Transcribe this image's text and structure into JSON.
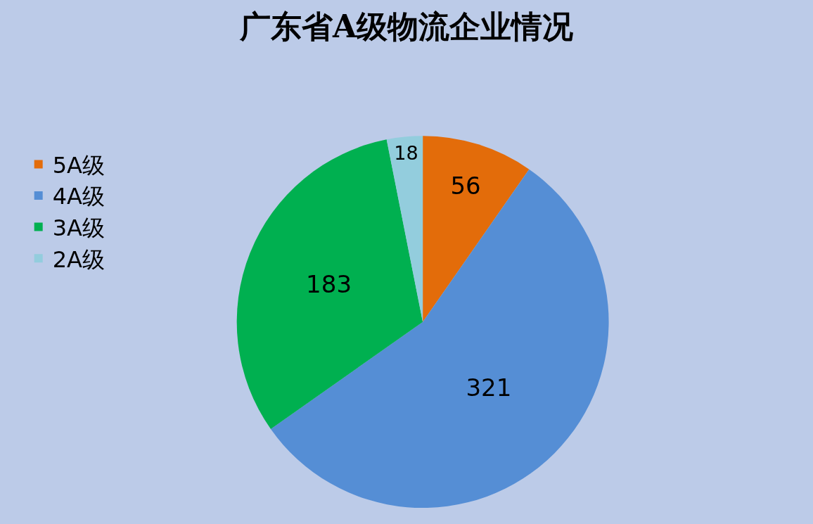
{
  "chart_data": {
    "type": "pie",
    "title": "广东省A级物流企业情况",
    "categories": [
      "5A级",
      "4A级",
      "3A级",
      "2A级"
    ],
    "values": [
      56,
      321,
      183,
      18
    ],
    "colors": [
      "#e36c0a",
      "#558ed5",
      "#00b050",
      "#93cddd"
    ],
    "data_labels": true,
    "legend": "top left"
  }
}
